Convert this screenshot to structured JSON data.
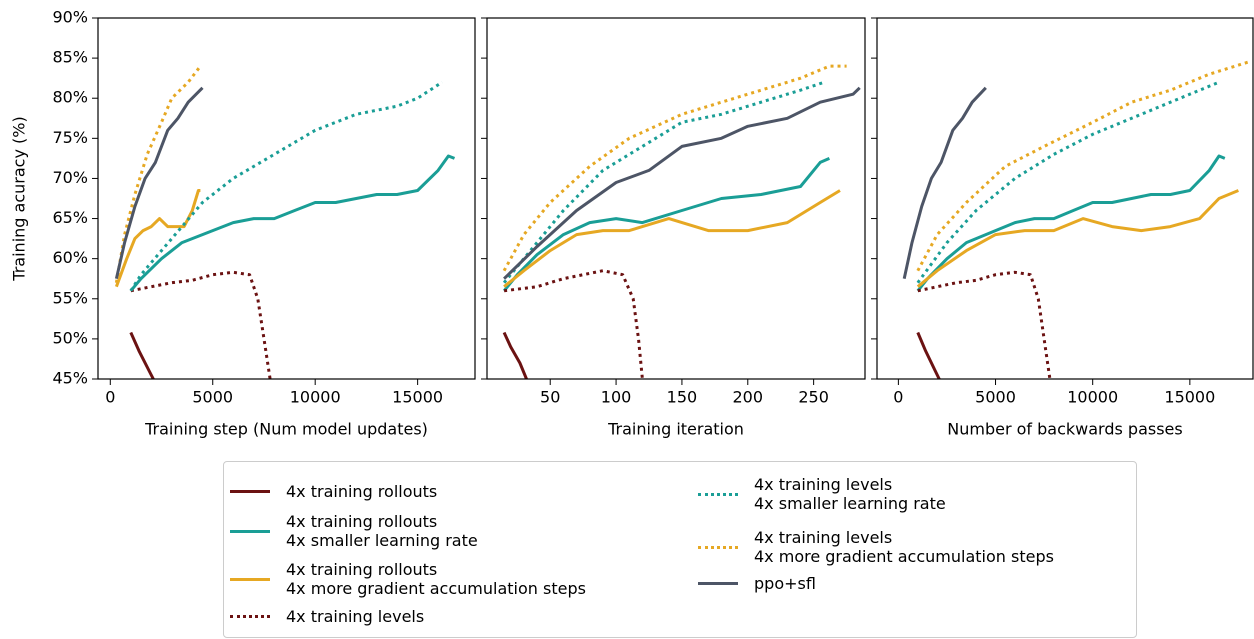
{
  "chart_data": [
    {
      "type": "line",
      "xlabel": "Training step (Num model updates)",
      "ylabel": "Training acuracy (%)",
      "xlim": [
        -600,
        17800
      ],
      "xticks": [
        0,
        5000,
        10000,
        15000
      ],
      "ylim": [
        45,
        90
      ],
      "yticks": [
        {
          "value": 45,
          "label": "45%"
        },
        {
          "value": 50,
          "label": "50%"
        },
        {
          "value": 55,
          "label": "55%"
        },
        {
          "value": 60,
          "label": "60%"
        },
        {
          "value": 65,
          "label": "65%"
        },
        {
          "value": 70,
          "label": "70%"
        },
        {
          "value": 75,
          "label": "75%"
        },
        {
          "value": 80,
          "label": "80%"
        },
        {
          "value": 85,
          "label": "85%"
        },
        {
          "value": 90,
          "label": "90%"
        }
      ],
      "series": [
        {
          "name": "4x training rollouts",
          "color": "#6b1212",
          "style": "solid",
          "x": [
            1000,
            1400,
            1900,
            2300
          ],
          "values": [
            50.8,
            48.5,
            46,
            44
          ]
        },
        {
          "name": "4x training rollouts\n4x smaller learning rate",
          "color": "#1a9e96",
          "style": "solid",
          "x": [
            1000,
            1500,
            2500,
            3500,
            5000,
            6000,
            7000,
            8000,
            9000,
            10000,
            11000,
            12000,
            13000,
            14000,
            15000,
            16000,
            16500,
            16800
          ],
          "values": [
            56,
            57.5,
            60,
            62,
            63.5,
            64.5,
            65,
            65,
            66,
            67,
            67,
            67.5,
            68,
            68,
            68.5,
            71,
            72.8,
            72.5
          ]
        },
        {
          "name": "4x training rollouts\n4x more gradient accumulation steps",
          "color": "#e6a823",
          "style": "solid",
          "x": [
            300,
            800,
            1200,
            1600,
            2000,
            2400,
            2800,
            3200,
            3600,
            4000,
            4300,
            4400
          ],
          "values": [
            56.5,
            60,
            62.5,
            63.5,
            64,
            65,
            64,
            64,
            64,
            66,
            68.5,
            68.5
          ]
        },
        {
          "name": "4x training levels",
          "color": "#6b1212",
          "style": "dotted",
          "x": [
            1000,
            2000,
            3000,
            4000,
            5000,
            6000,
            6800,
            7200,
            7500,
            7800,
            8000
          ],
          "values": [
            56,
            56.5,
            57,
            57.3,
            58,
            58.3,
            58,
            55,
            50,
            45,
            42
          ]
        },
        {
          "name": "4x training levels\n4x smaller learning rate",
          "color": "#1a9e96",
          "style": "dotted",
          "x": [
            1000,
            1500,
            2500,
            3500,
            4500,
            6000,
            8000,
            10000,
            12000,
            14000,
            15000,
            16200
          ],
          "values": [
            56,
            58,
            61,
            64,
            67,
            70,
            73,
            76,
            78,
            79,
            80,
            82
          ]
        },
        {
          "name": "4x training levels\n4x more gradient accumulation steps",
          "color": "#e6a823",
          "style": "dotted",
          "x": [
            300,
            700,
            1200,
            1800,
            2500,
            3000,
            3800,
            4400
          ],
          "values": [
            57,
            63,
            68,
            73,
            77,
            80,
            82,
            84
          ]
        },
        {
          "name": "ppo+sfl",
          "color": "#4d5566",
          "style": "solid",
          "x": [
            300,
            700,
            1200,
            1700,
            2200,
            2800,
            3300,
            3800,
            4500
          ],
          "values": [
            57.5,
            62,
            66.5,
            70,
            72,
            76,
            77.5,
            79.5,
            81.3
          ]
        }
      ]
    },
    {
      "type": "line",
      "xlabel": "Training iteration",
      "xlim": [
        2,
        289
      ],
      "xticks": [
        50,
        100,
        150,
        200,
        250
      ],
      "ylim": [
        45,
        90
      ],
      "yticks": [
        45,
        50,
        55,
        60,
        65,
        70,
        75,
        80,
        85,
        90
      ],
      "series": [
        {
          "name": "4x training rollouts",
          "color": "#6b1212",
          "style": "solid",
          "x": [
            15,
            20,
            27,
            32,
            35
          ],
          "values": [
            50.8,
            49,
            47,
            45,
            44
          ]
        },
        {
          "name": "4x training rollouts\n4x smaller learning rate",
          "color": "#1a9e96",
          "style": "solid",
          "x": [
            15,
            25,
            40,
            60,
            80,
            100,
            120,
            150,
            180,
            210,
            240,
            255,
            262
          ],
          "values": [
            56,
            58,
            60.5,
            63,
            64.5,
            65,
            64.5,
            66,
            67.5,
            68,
            69,
            72,
            72.5
          ]
        },
        {
          "name": "4x training rollouts\n4x more gradient accumulation steps",
          "color": "#e6a823",
          "style": "solid",
          "x": [
            15,
            30,
            50,
            70,
            90,
            110,
            140,
            170,
            200,
            230,
            255,
            270
          ],
          "values": [
            56.5,
            58.5,
            61,
            63,
            63.5,
            63.5,
            65,
            63.5,
            63.5,
            64.5,
            67,
            68.5
          ]
        },
        {
          "name": "4x training levels",
          "color": "#6b1212",
          "style": "dotted",
          "x": [
            15,
            40,
            60,
            90,
            105,
            113,
            117,
            120,
            122
          ],
          "values": [
            56,
            56.5,
            57.5,
            58.5,
            58,
            55,
            50,
            45,
            42
          ]
        },
        {
          "name": "4x training levels\n4x smaller learning rate",
          "color": "#1a9e96",
          "style": "dotted",
          "x": [
            15,
            40,
            60,
            90,
            120,
            150,
            180,
            210,
            240,
            258
          ],
          "values": [
            57,
            62,
            66,
            71,
            74,
            77,
            78,
            79.5,
            81,
            82
          ]
        },
        {
          "name": "4x training levels\n4x more gradient accumulation steps",
          "color": "#e6a823",
          "style": "dotted",
          "x": [
            15,
            30,
            50,
            80,
            110,
            150,
            180,
            210,
            240,
            262,
            275
          ],
          "values": [
            58.5,
            63,
            67,
            71.5,
            75,
            78,
            79.5,
            81,
            82.5,
            84,
            84
          ]
        },
        {
          "name": "ppo+sfl",
          "color": "#4d5566",
          "style": "solid",
          "x": [
            15,
            40,
            70,
            100,
            125,
            150,
            180,
            200,
            230,
            255,
            280,
            285
          ],
          "values": [
            57.5,
            61.5,
            66,
            69.5,
            71,
            74,
            75,
            76.5,
            77.5,
            79.5,
            80.5,
            81.3
          ]
        }
      ]
    },
    {
      "type": "line",
      "xlabel": "Number of backwards passes",
      "xlim": [
        -1100,
        18250
      ],
      "xticks": [
        0,
        5000,
        10000,
        15000
      ],
      "ylim": [
        45,
        90
      ],
      "yticks": [
        45,
        50,
        55,
        60,
        65,
        70,
        75,
        80,
        85,
        90
      ],
      "series": [
        {
          "name": "4x training rollouts",
          "color": "#6b1212",
          "style": "solid",
          "x": [
            1000,
            1400,
            1900,
            2300
          ],
          "values": [
            50.8,
            48.5,
            46,
            44
          ]
        },
        {
          "name": "4x training rollouts\n4x smaller learning rate",
          "color": "#1a9e96",
          "style": "solid",
          "x": [
            1000,
            1500,
            2500,
            3500,
            5000,
            6000,
            7000,
            8000,
            9000,
            10000,
            11000,
            12000,
            13000,
            14000,
            15000,
            16000,
            16500,
            16800
          ],
          "values": [
            56,
            57.5,
            60,
            62,
            63.5,
            64.5,
            65,
            65,
            66,
            67,
            67,
            67.5,
            68,
            68,
            68.5,
            71,
            72.8,
            72.5
          ]
        },
        {
          "name": "4x training rollouts\n4x more gradient accumulation steps",
          "color": "#e6a823",
          "style": "solid",
          "x": [
            1000,
            2000,
            3500,
            5000,
            6500,
            8000,
            9500,
            11000,
            12500,
            14000,
            15500,
            16500,
            17500
          ],
          "values": [
            56.5,
            58.5,
            61,
            63,
            63.5,
            63.5,
            65,
            64,
            63.5,
            64,
            65,
            67.5,
            68.5
          ]
        },
        {
          "name": "4x training levels",
          "color": "#6b1212",
          "style": "dotted",
          "x": [
            1000,
            2000,
            3000,
            4000,
            5000,
            6000,
            6800,
            7200,
            7500,
            7800,
            8000
          ],
          "values": [
            56,
            56.5,
            57,
            57.3,
            58,
            58.3,
            58,
            55,
            50,
            45,
            42
          ]
        },
        {
          "name": "4x training levels\n4x smaller learning rate",
          "color": "#1a9e96",
          "style": "dotted",
          "x": [
            1000,
            2500,
            4000,
            6000,
            8000,
            10000,
            12000,
            14000,
            15500,
            16500
          ],
          "values": [
            57,
            62,
            66,
            70,
            73,
            75.5,
            77.5,
            79.5,
            81,
            82
          ]
        },
        {
          "name": "4x training levels\n4x more gradient accumulation steps",
          "color": "#e6a823",
          "style": "dotted",
          "x": [
            1000,
            2000,
            3500,
            5500,
            7500,
            10000,
            12000,
            14000,
            16000,
            18000
          ],
          "values": [
            58.5,
            63,
            67,
            71.5,
            74,
            77,
            79.5,
            81,
            83,
            84.5
          ]
        },
        {
          "name": "ppo+sfl",
          "color": "#4d5566",
          "style": "solid",
          "x": [
            300,
            700,
            1200,
            1700,
            2200,
            2800,
            3300,
            3800,
            4500
          ],
          "values": [
            57.5,
            62,
            66.5,
            70,
            72,
            76,
            77.5,
            79.5,
            81.3
          ]
        }
      ]
    }
  ]
}
